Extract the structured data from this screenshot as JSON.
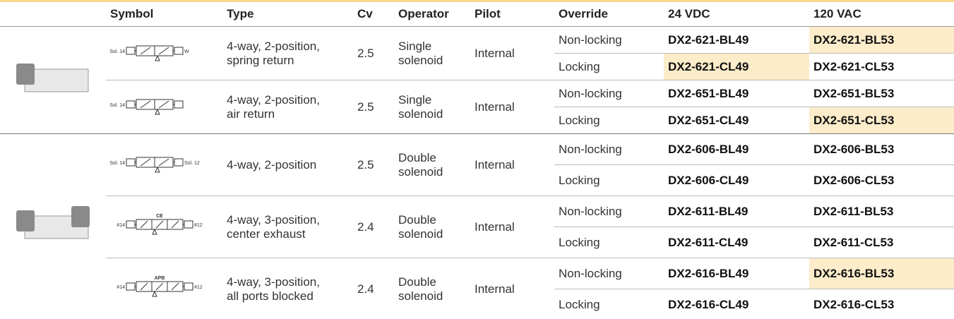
{
  "table": {
    "headers": [
      "Symbol",
      "Type",
      "Cv",
      "Operator",
      "Pilot",
      "Override",
      "24 VDC",
      "120 VAC"
    ],
    "groups": [
      {
        "products": [
          {
            "symbol": {
              "left": "Sol. 14",
              "right": "W",
              "top": ""
            },
            "type": "4-way, 2-position,\nspring return",
            "cv": "2.5",
            "operator": "Single\nsolenoid",
            "pilot": "Internal",
            "variants": [
              {
                "override": "Non-locking",
                "vdc24": "DX2-621-BL49",
                "vdc24_highlight": false,
                "vac120": "DX2-621-BL53",
                "vac120_highlight": true
              },
              {
                "override": "Locking",
                "vdc24": "DX2-621-CL49",
                "vdc24_highlight": true,
                "vac120": "DX2-621-CL53",
                "vac120_highlight": false
              }
            ]
          },
          {
            "symbol": {
              "left": "Sol. 14",
              "right": "",
              "top": ""
            },
            "type": "4-way, 2-position,\nair return",
            "cv": "2.5",
            "operator": "Single\nsolenoid",
            "pilot": "Internal",
            "variants": [
              {
                "override": "Non-locking",
                "vdc24": "DX2-651-BL49",
                "vdc24_highlight": false,
                "vac120": "DX2-651-BL53",
                "vac120_highlight": false
              },
              {
                "override": "Locking",
                "vdc24": "DX2-651-CL49",
                "vdc24_highlight": false,
                "vac120": "DX2-651-CL53",
                "vac120_highlight": true
              }
            ]
          }
        ]
      },
      {
        "products": [
          {
            "symbol": {
              "left": "Sol. 14",
              "right": "Sol. 12",
              "top": ""
            },
            "type": "4-way, 2-position",
            "cv": "2.5",
            "operator": "Double\nsolenoid",
            "pilot": "Internal",
            "variants": [
              {
                "override": "Non-locking",
                "vdc24": "DX2-606-BL49",
                "vdc24_highlight": false,
                "vac120": "DX2-606-BL53",
                "vac120_highlight": false
              },
              {
                "override": "Locking",
                "vdc24": "DX2-606-CL49",
                "vdc24_highlight": false,
                "vac120": "DX2-606-CL53",
                "vac120_highlight": false
              }
            ]
          },
          {
            "symbol": {
              "left": "#14",
              "right": "#12",
              "top": "CE"
            },
            "type": "4-way, 3-position,\ncenter exhaust",
            "cv": "2.4",
            "operator": "Double\nsolenoid",
            "pilot": "Internal",
            "variants": [
              {
                "override": "Non-locking",
                "vdc24": "DX2-611-BL49",
                "vdc24_highlight": false,
                "vac120": "DX2-611-BL53",
                "vac120_highlight": false
              },
              {
                "override": "Locking",
                "vdc24": "DX2-611-CL49",
                "vdc24_highlight": false,
                "vac120": "DX2-611-CL53",
                "vac120_highlight": false
              }
            ]
          },
          {
            "symbol": {
              "left": "#14",
              "right": "#12",
              "top": "APB"
            },
            "type": "4-way, 3-position,\nall ports blocked",
            "cv": "2.4",
            "operator": "Double\nsolenoid",
            "pilot": "Internal",
            "variants": [
              {
                "override": "Non-locking",
                "vdc24": "DX2-616-BL49",
                "vdc24_highlight": false,
                "vac120": "DX2-616-BL53",
                "vac120_highlight": true
              },
              {
                "override": "Locking",
                "vdc24": "DX2-616-CL49",
                "vdc24_highlight": false,
                "vac120": "DX2-616-CL53",
                "vac120_highlight": false
              }
            ]
          }
        ]
      }
    ]
  }
}
